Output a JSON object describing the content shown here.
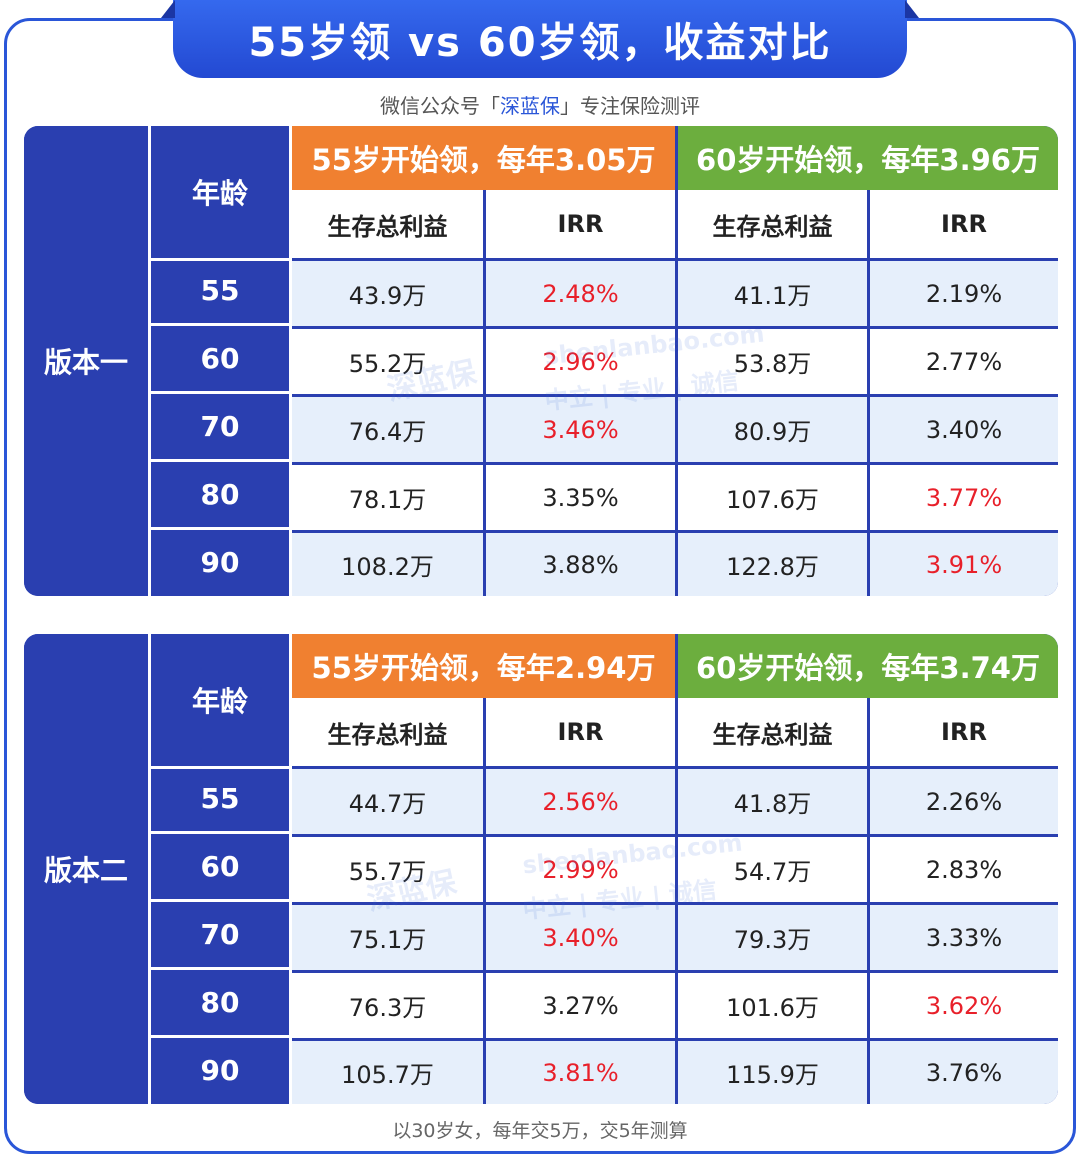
{
  "header": {
    "title": "55岁领 vs 60岁领，收益对比",
    "subtitle_prefix": "微信公众号「",
    "subtitle_brand": "深蓝保",
    "subtitle_suffix": "」专注保险测评"
  },
  "watermark": {
    "logo": "深蓝保",
    "domain": "shenlanbao.com",
    "slogan": "中立 | 专业 | 诚信"
  },
  "tables": [
    {
      "version": "版本一",
      "age_header": "年龄",
      "plan_a": "55岁开始领，每年3.05万",
      "plan_b": "60岁开始领，每年3.96万",
      "col_benefit": "生存总利益",
      "col_irr": "IRR",
      "rows": [
        {
          "age": "55",
          "a_benefit": "43.9万",
          "a_irr": "2.48%",
          "b_benefit": "41.1万",
          "b_irr": "2.19%"
        },
        {
          "age": "60",
          "a_benefit": "55.2万",
          "a_irr": "2.96%",
          "b_benefit": "53.8万",
          "b_irr": "2.77%"
        },
        {
          "age": "70",
          "a_benefit": "76.4万",
          "a_irr": "3.46%",
          "b_benefit": "80.9万",
          "b_irr": "3.40%"
        },
        {
          "age": "80",
          "a_benefit": "78.1万",
          "a_irr": "3.35%",
          "b_benefit": "107.6万",
          "b_irr": "3.77%"
        },
        {
          "age": "90",
          "a_benefit": "108.2万",
          "a_irr": "3.88%",
          "b_benefit": "122.8万",
          "b_irr": "3.91%"
        }
      ]
    },
    {
      "version": "版本二",
      "age_header": "年龄",
      "plan_a": "55岁开始领，每年2.94万",
      "plan_b": "60岁开始领，每年3.74万",
      "col_benefit": "生存总利益",
      "col_irr": "IRR",
      "rows": [
        {
          "age": "55",
          "a_benefit": "44.7万",
          "a_irr": "2.56%",
          "b_benefit": "41.8万",
          "b_irr": "2.26%"
        },
        {
          "age": "60",
          "a_benefit": "55.7万",
          "a_irr": "2.99%",
          "b_benefit": "54.7万",
          "b_irr": "2.83%"
        },
        {
          "age": "70",
          "a_benefit": "75.1万",
          "a_irr": "3.40%",
          "b_benefit": "79.3万",
          "b_irr": "3.33%"
        },
        {
          "age": "80",
          "a_benefit": "76.3万",
          "a_irr": "3.27%",
          "b_benefit": "101.6万",
          "b_irr": "3.62%"
        },
        {
          "age": "90",
          "a_benefit": "105.7万",
          "a_irr": "3.81%",
          "b_benefit": "115.9万",
          "b_irr": "3.76%"
        }
      ]
    }
  ],
  "footnote": "以30岁女，每年交5万，交5年测算",
  "colors": {
    "primary_blue": "#2a3fb0",
    "accent_orange": "#f08030",
    "accent_green": "#6cae3e",
    "highlight_red": "#e8202a",
    "row_tint": "#e6effb"
  }
}
